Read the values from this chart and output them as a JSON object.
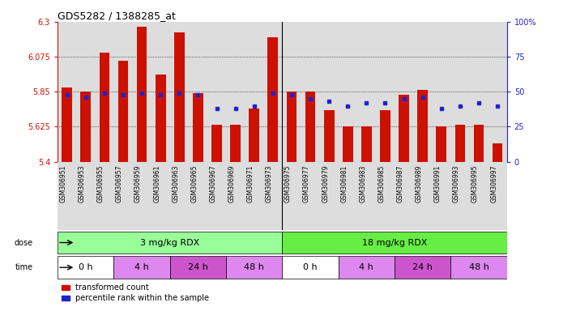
{
  "title": "GDS5282 / 1388285_at",
  "samples": [
    "GSM306951",
    "GSM306953",
    "GSM306955",
    "GSM306957",
    "GSM306959",
    "GSM306961",
    "GSM306963",
    "GSM306965",
    "GSM306967",
    "GSM306969",
    "GSM306971",
    "GSM306973",
    "GSM306975",
    "GSM306977",
    "GSM306979",
    "GSM306981",
    "GSM306983",
    "GSM306985",
    "GSM306987",
    "GSM306989",
    "GSM306991",
    "GSM306993",
    "GSM306995",
    "GSM306997"
  ],
  "bar_values": [
    5.88,
    5.85,
    6.1,
    6.05,
    6.27,
    5.96,
    6.23,
    5.84,
    5.64,
    5.64,
    5.74,
    6.2,
    5.85,
    5.85,
    5.73,
    5.63,
    5.63,
    5.73,
    5.83,
    5.86,
    5.63,
    5.64,
    5.64,
    5.52
  ],
  "percentile_values": [
    48,
    46,
    49,
    48,
    49,
    48,
    49,
    48,
    38,
    38,
    40,
    49,
    48,
    45,
    43,
    40,
    42,
    42,
    45,
    46,
    38,
    40,
    42,
    40
  ],
  "ymin": 5.4,
  "ymax": 6.3,
  "yticks": [
    5.4,
    5.625,
    5.85,
    6.075,
    6.3
  ],
  "yticklabels": [
    "5.4",
    "5.625",
    "5.85",
    "6.075",
    "6.3"
  ],
  "right_yticks": [
    0,
    25,
    50,
    75,
    100
  ],
  "right_yticklabels": [
    "0",
    "25",
    "50",
    "75",
    "100%"
  ],
  "bar_color": "#cc1100",
  "percentile_color": "#2222cc",
  "bg_color": "#dddddd",
  "dose_groups": [
    {
      "label": "3 mg/kg RDX",
      "start": 0,
      "end": 12,
      "color": "#99ff99"
    },
    {
      "label": "18 mg/kg RDX",
      "start": 12,
      "end": 24,
      "color": "#66ee44"
    }
  ],
  "time_groups": [
    {
      "label": "0 h",
      "start": 0,
      "end": 3,
      "color": "#ffffff"
    },
    {
      "label": "4 h",
      "start": 3,
      "end": 6,
      "color": "#dd88ee"
    },
    {
      "label": "24 h",
      "start": 6,
      "end": 9,
      "color": "#cc55cc"
    },
    {
      "label": "48 h",
      "start": 9,
      "end": 12,
      "color": "#dd88ee"
    },
    {
      "label": "0 h",
      "start": 12,
      "end": 15,
      "color": "#ffffff"
    },
    {
      "label": "4 h",
      "start": 15,
      "end": 18,
      "color": "#dd88ee"
    },
    {
      "label": "24 h",
      "start": 18,
      "end": 21,
      "color": "#cc55cc"
    },
    {
      "label": "48 h",
      "start": 21,
      "end": 24,
      "color": "#dd88ee"
    }
  ],
  "legend_bar_label": "transformed count",
  "legend_pct_label": "percentile rank within the sample",
  "fig_bg": "#ffffff"
}
